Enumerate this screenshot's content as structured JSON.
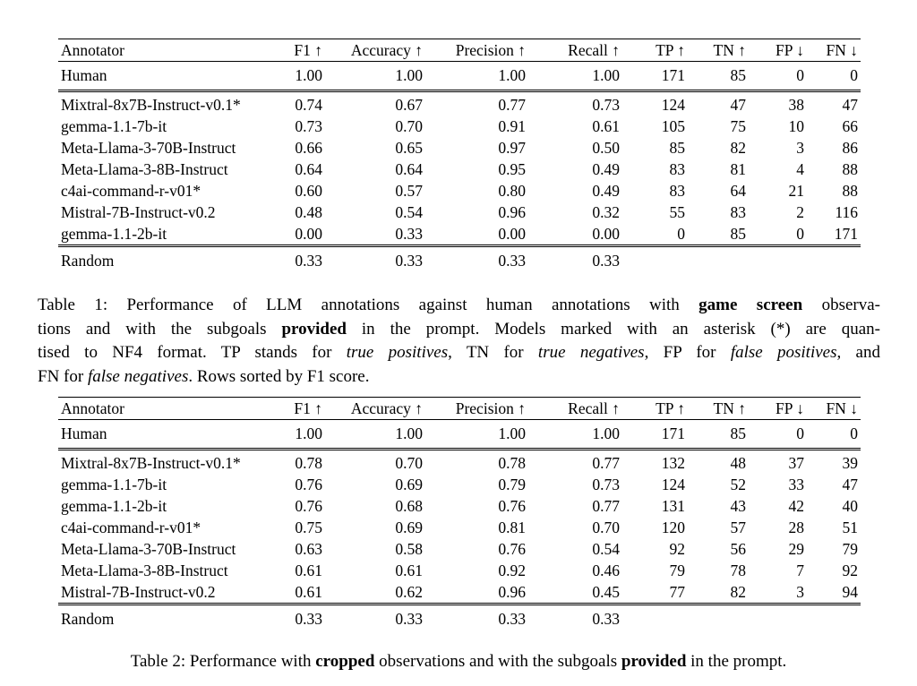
{
  "document": {
    "background": "#ffffff",
    "text_color": "#000000"
  },
  "tables": [
    {
      "name": "performance-table-1",
      "columns": [
        "Annotator",
        "F1 ↑",
        "Accuracy ↑",
        "Precision ↑",
        "Recall ↑",
        "TP ↑",
        "TN ↑",
        "FP ↓",
        "FN ↓"
      ],
      "human_row": {
        "label": "Human",
        "values": [
          "1.00",
          "1.00",
          "1.00",
          "1.00",
          "171",
          "85",
          "0",
          "0"
        ],
        "bold": [
          true,
          true,
          true,
          true,
          true,
          true,
          true,
          true
        ]
      },
      "model_rows": [
        {
          "label": "Mixtral-8x7B-Instruct-v0.1*",
          "values": [
            "0.74",
            "0.67",
            "0.77",
            "0.73",
            "124",
            "47",
            "38",
            "47"
          ],
          "bold": [
            true,
            false,
            false,
            true,
            true,
            false,
            false,
            true
          ]
        },
        {
          "label": "gemma-1.1-7b-it",
          "values": [
            "0.73",
            "0.70",
            "0.91",
            "0.61",
            "105",
            "75",
            "10",
            "66"
          ],
          "bold": [
            false,
            true,
            false,
            false,
            false,
            false,
            false,
            false
          ]
        },
        {
          "label": "Meta-Llama-3-70B-Instruct",
          "values": [
            "0.66",
            "0.65",
            "0.97",
            "0.50",
            "85",
            "82",
            "3",
            "86"
          ],
          "bold": [
            false,
            false,
            true,
            false,
            false,
            false,
            false,
            false
          ]
        },
        {
          "label": "Meta-Llama-3-8B-Instruct",
          "values": [
            "0.64",
            "0.64",
            "0.95",
            "0.49",
            "83",
            "81",
            "4",
            "88"
          ],
          "bold": [
            false,
            false,
            false,
            false,
            false,
            false,
            false,
            false
          ]
        },
        {
          "label": "c4ai-command-r-v01*",
          "values": [
            "0.60",
            "0.57",
            "0.80",
            "0.49",
            "83",
            "64",
            "21",
            "88"
          ],
          "bold": [
            false,
            false,
            false,
            false,
            false,
            false,
            false,
            false
          ]
        },
        {
          "label": "Mistral-7B-Instruct-v0.2",
          "values": [
            "0.48",
            "0.54",
            "0.96",
            "0.32",
            "55",
            "83",
            "2",
            "116"
          ],
          "bold": [
            false,
            false,
            false,
            false,
            false,
            false,
            false,
            false
          ]
        },
        {
          "label": "gemma-1.1-2b-it",
          "values": [
            "0.00",
            "0.33",
            "0.00",
            "0.00",
            "0",
            "85",
            "0",
            "171"
          ],
          "bold": [
            false,
            false,
            false,
            false,
            false,
            true,
            true,
            false
          ]
        }
      ],
      "random_row": {
        "label": "Random",
        "values": [
          "0.33",
          "0.33",
          "0.33",
          "0.33",
          "",
          "",
          "",
          ""
        ],
        "bold": [
          false,
          false,
          false,
          false,
          false,
          false,
          false,
          false
        ]
      }
    },
    {
      "name": "performance-table-2",
      "columns": [
        "Annotator",
        "F1 ↑",
        "Accuracy ↑",
        "Precision ↑",
        "Recall ↑",
        "TP ↑",
        "TN ↑",
        "FP ↓",
        "FN ↓"
      ],
      "human_row": {
        "label": "Human",
        "values": [
          "1.00",
          "1.00",
          "1.00",
          "1.00",
          "171",
          "85",
          "0",
          "0"
        ],
        "bold": [
          true,
          true,
          true,
          true,
          true,
          true,
          true,
          true
        ]
      },
      "model_rows": [
        {
          "label": "Mixtral-8x7B-Instruct-v0.1*",
          "values": [
            "0.78",
            "0.70",
            "0.78",
            "0.77",
            "132",
            "48",
            "37",
            "39"
          ],
          "bold": [
            true,
            true,
            false,
            true,
            true,
            false,
            false,
            true
          ]
        },
        {
          "label": "gemma-1.1-7b-it",
          "values": [
            "0.76",
            "0.69",
            "0.79",
            "0.73",
            "124",
            "52",
            "33",
            "47"
          ],
          "bold": [
            false,
            false,
            false,
            false,
            false,
            false,
            false,
            false
          ]
        },
        {
          "label": "gemma-1.1-2b-it",
          "values": [
            "0.76",
            "0.68",
            "0.76",
            "0.77",
            "131",
            "43",
            "42",
            "40"
          ],
          "bold": [
            false,
            false,
            false,
            true,
            false,
            false,
            false,
            false
          ]
        },
        {
          "label": "c4ai-command-r-v01*",
          "values": [
            "0.75",
            "0.69",
            "0.81",
            "0.70",
            "120",
            "57",
            "28",
            "51"
          ],
          "bold": [
            false,
            false,
            false,
            false,
            false,
            false,
            false,
            false
          ]
        },
        {
          "label": "Meta-Llama-3-70B-Instruct",
          "values": [
            "0.63",
            "0.58",
            "0.76",
            "0.54",
            "92",
            "56",
            "29",
            "79"
          ],
          "bold": [
            false,
            false,
            false,
            false,
            false,
            false,
            false,
            false
          ]
        },
        {
          "label": "Meta-Llama-3-8B-Instruct",
          "values": [
            "0.61",
            "0.61",
            "0.92",
            "0.46",
            "79",
            "78",
            "7",
            "92"
          ],
          "bold": [
            false,
            false,
            false,
            false,
            false,
            false,
            false,
            false
          ]
        },
        {
          "label": "Mistral-7B-Instruct-v0.2",
          "values": [
            "0.61",
            "0.62",
            "0.96",
            "0.45",
            "77",
            "82",
            "3",
            "94"
          ],
          "bold": [
            false,
            false,
            true,
            false,
            false,
            true,
            true,
            false
          ]
        }
      ],
      "random_row": {
        "label": "Random",
        "values": [
          "0.33",
          "0.33",
          "0.33",
          "0.33",
          "",
          "",
          "",
          ""
        ],
        "bold": [
          false,
          false,
          false,
          false,
          false,
          false,
          false,
          false
        ]
      }
    }
  ],
  "captions": [
    {
      "name": "table-1-caption",
      "justify": true,
      "lines": [
        [
          {
            "text": "Table 1: Performance of LLM annotations against human annotations with ",
            "style": "normal"
          },
          {
            "text": "game screen",
            "style": "bold"
          },
          {
            "text": " observa-",
            "style": "normal"
          }
        ],
        [
          {
            "text": "tions and with the subgoals ",
            "style": "normal"
          },
          {
            "text": "provided",
            "style": "bold"
          },
          {
            "text": " in the prompt. Models marked with an asterisk (*) are quan-",
            "style": "normal"
          }
        ],
        [
          {
            "text": "tised to NF4 format. TP stands for ",
            "style": "normal"
          },
          {
            "text": "true positives",
            "style": "italic"
          },
          {
            "text": ", TN for ",
            "style": "normal"
          },
          {
            "text": "true negatives",
            "style": "italic"
          },
          {
            "text": ", FP for ",
            "style": "normal"
          },
          {
            "text": "false positives",
            "style": "italic"
          },
          {
            "text": ", and",
            "style": "normal"
          }
        ],
        [
          {
            "text": "FN for ",
            "style": "normal"
          },
          {
            "text": "false negatives",
            "style": "italic"
          },
          {
            "text": ". Rows sorted by F1 score.",
            "style": "normal"
          }
        ]
      ]
    },
    {
      "name": "table-2-caption",
      "justify": false,
      "lines": [
        [
          {
            "text": "Table 2: Performance with ",
            "style": "normal"
          },
          {
            "text": "cropped",
            "style": "bold"
          },
          {
            "text": " observations and with the subgoals ",
            "style": "normal"
          },
          {
            "text": "provided",
            "style": "bold"
          },
          {
            "text": " in the prompt.",
            "style": "normal"
          }
        ]
      ]
    }
  ]
}
